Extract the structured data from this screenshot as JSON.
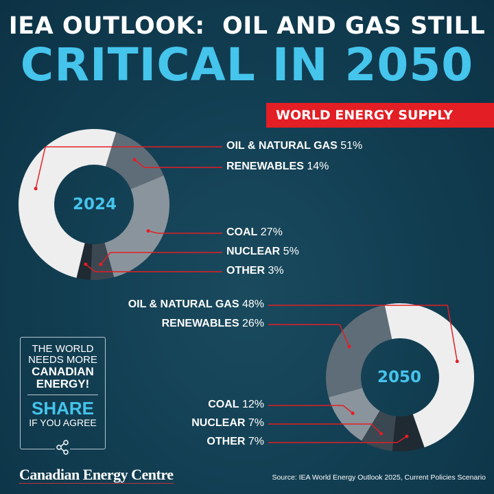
{
  "title_line1": "IEA OUTLOOK:  OIL AND GAS STILL",
  "title_line2": "CRITICAL IN 2050",
  "banner": "WORLD ENERGY SUPPLY",
  "colors": {
    "background": "#123e52",
    "accent": "#45c4ec",
    "banner": "#e31e24",
    "leader": "#e31e24"
  },
  "chart_data": [
    {
      "type": "pie",
      "donut": true,
      "center_label": "2024",
      "categories": [
        "OIL & NATURAL GAS",
        "RENEWABLES",
        "COAL",
        "NUCLEAR",
        "OTHER"
      ],
      "values": [
        51,
        14,
        27,
        5,
        3
      ],
      "value_labels": [
        "51%",
        "14%",
        "27%",
        "5%",
        "3%"
      ],
      "colors": [
        "#eeeeee",
        "#5f6d78",
        "#8a949c",
        "#3b4852",
        "#1f2a33"
      ]
    },
    {
      "type": "pie",
      "donut": true,
      "center_label": "2050",
      "categories": [
        "OIL & NATURAL GAS",
        "RENEWABLES",
        "COAL",
        "NUCLEAR",
        "OTHER"
      ],
      "values": [
        48,
        26,
        12,
        7,
        7
      ],
      "value_labels": [
        "48%",
        "26%",
        "12%",
        "7%",
        "7%"
      ],
      "colors": [
        "#eeeeee",
        "#5f6d78",
        "#8a949c",
        "#3b4852",
        "#1f2a33"
      ]
    }
  ],
  "promo": {
    "line1": "THE WORLD",
    "line2": "NEEDS MORE",
    "line3": "CANADIAN",
    "line4": "ENERGY!",
    "share": "SHARE",
    "agree": "IF YOU AGREE",
    "icon": "share-icon"
  },
  "logo": "Canadian Energy Centre",
  "source": "Source: IEA World Energy Outlook 2025, Current Policies Scenario"
}
